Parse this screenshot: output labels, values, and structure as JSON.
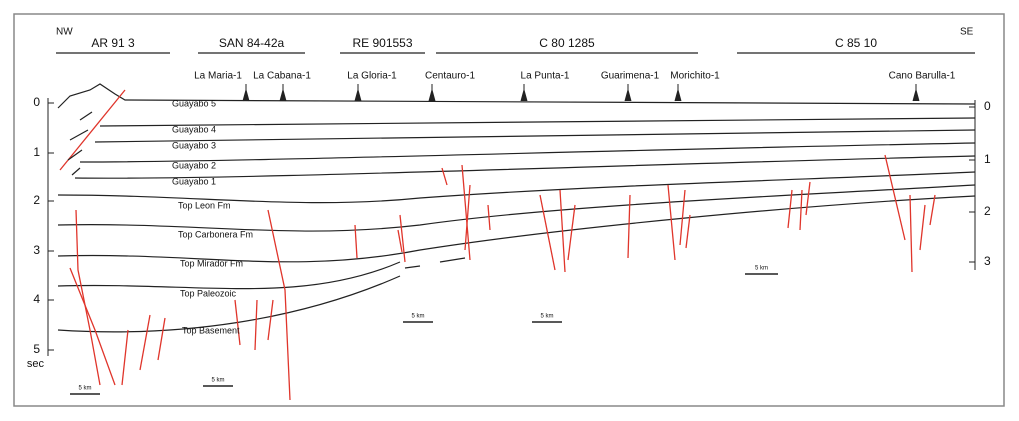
{
  "header": {
    "left": "NW",
    "right": "SE"
  },
  "seismic_lines": [
    "AR 91 3",
    "SAN 84-42a",
    "RE 901553",
    "C 80 1285",
    "C 85 10"
  ],
  "wells": [
    "La Maria-1",
    "La Cabana-1",
    "La Gloria-1",
    "Centauro-1",
    "La Punta-1",
    "Guarimena-1",
    "Morichito-1",
    "Cano Barulla-1"
  ],
  "horizons": [
    "Guayabo 5",
    "Guayabo 4",
    "Guayabo 3",
    "Guayabo 2",
    "Guayabo 1",
    "Top Leon Fm",
    "Top Carbonera Fm",
    "Top Mirador Fm",
    "Top Paleozoic",
    "Top Basement"
  ],
  "left_axis": {
    "ticks": [
      0,
      1,
      2,
      3,
      4,
      5
    ],
    "unit": "sec"
  },
  "right_axis": {
    "ticks": [
      0,
      1,
      2,
      3
    ]
  },
  "scale_bars": [
    "5 km",
    "5 km",
    "5 km",
    "5 km",
    "5 km"
  ]
}
